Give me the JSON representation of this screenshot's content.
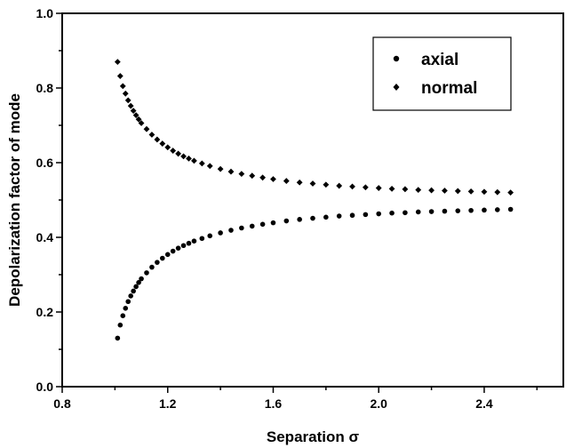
{
  "chart_data": {
    "type": "scatter",
    "xlabel": "Separation σ",
    "ylabel": "Depolarization factor of mode",
    "xlim": [
      0.8,
      2.7
    ],
    "ylim": [
      0.0,
      1.0
    ],
    "xticks": [
      0.8,
      1.2,
      1.6,
      2.0,
      2.4
    ],
    "yticks": [
      0.0,
      0.2,
      0.4,
      0.6,
      0.8,
      1.0
    ],
    "xtick_labels": [
      "0.8",
      "1.2",
      "1.6",
      "2.0",
      "2.4"
    ],
    "ytick_labels": [
      "0.0",
      "0.2",
      "0.4",
      "0.6",
      "0.8",
      "1.0"
    ],
    "grid": false,
    "legend_position": "top-right",
    "series": [
      {
        "name": "axial",
        "marker": "circle",
        "color": "#000000",
        "x": [
          1.01,
          1.02,
          1.03,
          1.04,
          1.05,
          1.06,
          1.07,
          1.08,
          1.09,
          1.1,
          1.12,
          1.14,
          1.16,
          1.18,
          1.2,
          1.22,
          1.24,
          1.26,
          1.28,
          1.3,
          1.33,
          1.36,
          1.4,
          1.44,
          1.48,
          1.52,
          1.56,
          1.6,
          1.65,
          1.7,
          1.75,
          1.8,
          1.85,
          1.9,
          1.95,
          2.0,
          2.05,
          2.1,
          2.15,
          2.2,
          2.25,
          2.3,
          2.35,
          2.4,
          2.45,
          2.5
        ],
        "y": [
          0.13,
          0.165,
          0.19,
          0.21,
          0.228,
          0.243,
          0.256,
          0.268,
          0.279,
          0.289,
          0.305,
          0.32,
          0.333,
          0.344,
          0.354,
          0.363,
          0.371,
          0.378,
          0.384,
          0.39,
          0.397,
          0.404,
          0.412,
          0.419,
          0.425,
          0.43,
          0.435,
          0.439,
          0.444,
          0.448,
          0.451,
          0.454,
          0.457,
          0.459,
          0.461,
          0.463,
          0.465,
          0.466,
          0.468,
          0.469,
          0.47,
          0.471,
          0.472,
          0.473,
          0.474,
          0.475
        ]
      },
      {
        "name": "normal",
        "marker": "diamond",
        "color": "#000000",
        "x": [
          1.01,
          1.02,
          1.03,
          1.04,
          1.05,
          1.06,
          1.07,
          1.08,
          1.09,
          1.1,
          1.12,
          1.14,
          1.16,
          1.18,
          1.2,
          1.22,
          1.24,
          1.26,
          1.28,
          1.3,
          1.33,
          1.36,
          1.4,
          1.44,
          1.48,
          1.52,
          1.56,
          1.6,
          1.65,
          1.7,
          1.75,
          1.8,
          1.85,
          1.9,
          1.95,
          2.0,
          2.05,
          2.1,
          2.15,
          2.2,
          2.25,
          2.3,
          2.35,
          2.4,
          2.45,
          2.5
        ],
        "y": [
          0.87,
          0.832,
          0.805,
          0.785,
          0.767,
          0.752,
          0.739,
          0.727,
          0.716,
          0.706,
          0.69,
          0.675,
          0.662,
          0.651,
          0.641,
          0.632,
          0.624,
          0.617,
          0.611,
          0.605,
          0.598,
          0.591,
          0.583,
          0.576,
          0.57,
          0.565,
          0.56,
          0.556,
          0.551,
          0.547,
          0.544,
          0.541,
          0.538,
          0.536,
          0.534,
          0.532,
          0.53,
          0.529,
          0.527,
          0.526,
          0.525,
          0.524,
          0.523,
          0.522,
          0.521,
          0.52
        ]
      }
    ]
  }
}
